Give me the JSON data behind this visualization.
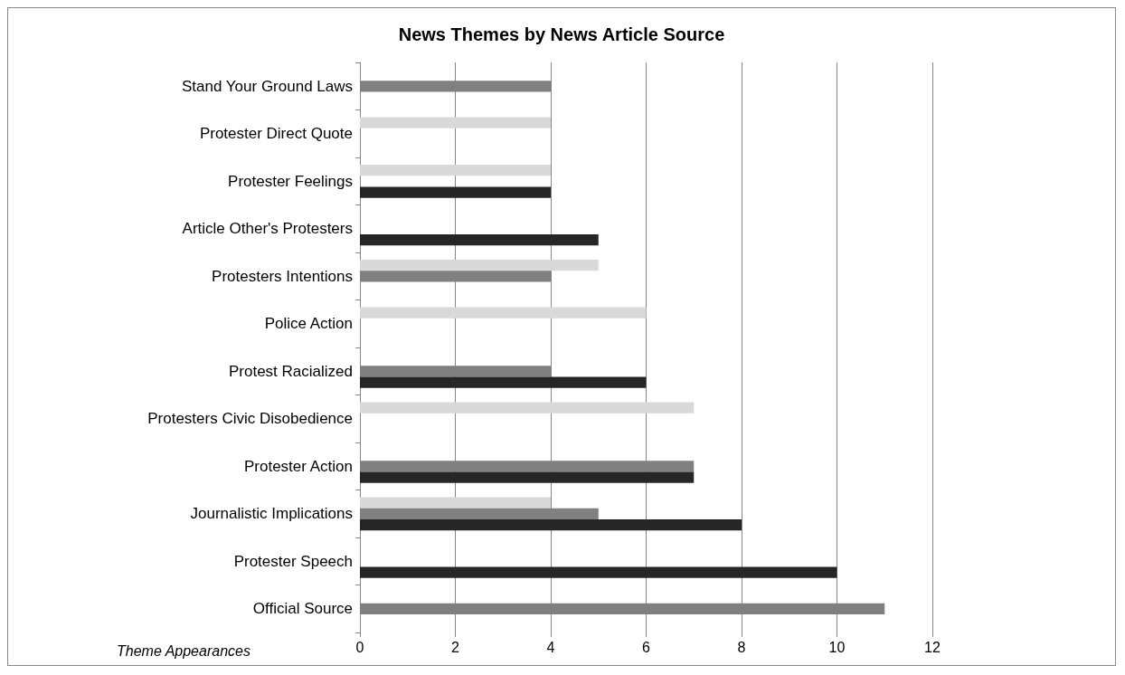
{
  "chart_data": {
    "type": "bar",
    "orientation": "horizontal",
    "title": "News Themes by News Article Source",
    "xlabel": "Theme Appearances",
    "categories": [
      "Stand Your Ground Laws",
      "Protester Direct Quote",
      "Protester Feelings",
      "Article Other's Protesters",
      "Protesters Intentions",
      "Police Action",
      "Protest Racialized",
      "Protesters Civic Disobedience",
      "Protester Action",
      "Journalistic Implications",
      "Protester Speech",
      "Official Source"
    ],
    "series": [
      {
        "color": "#d9d9d9",
        "values": [
          null,
          4,
          4,
          null,
          5,
          6,
          null,
          7,
          null,
          4,
          null,
          null
        ]
      },
      {
        "color": "#808080",
        "values": [
          4,
          null,
          null,
          null,
          4,
          null,
          4,
          null,
          7,
          5,
          null,
          11
        ]
      },
      {
        "color": "#262626",
        "values": [
          null,
          null,
          4,
          5,
          null,
          null,
          6,
          null,
          7,
          8,
          10,
          null
        ]
      }
    ],
    "xlim": [
      0,
      12
    ],
    "xticks": [
      0,
      2,
      4,
      6,
      8,
      10,
      12
    ],
    "grid": "x"
  }
}
